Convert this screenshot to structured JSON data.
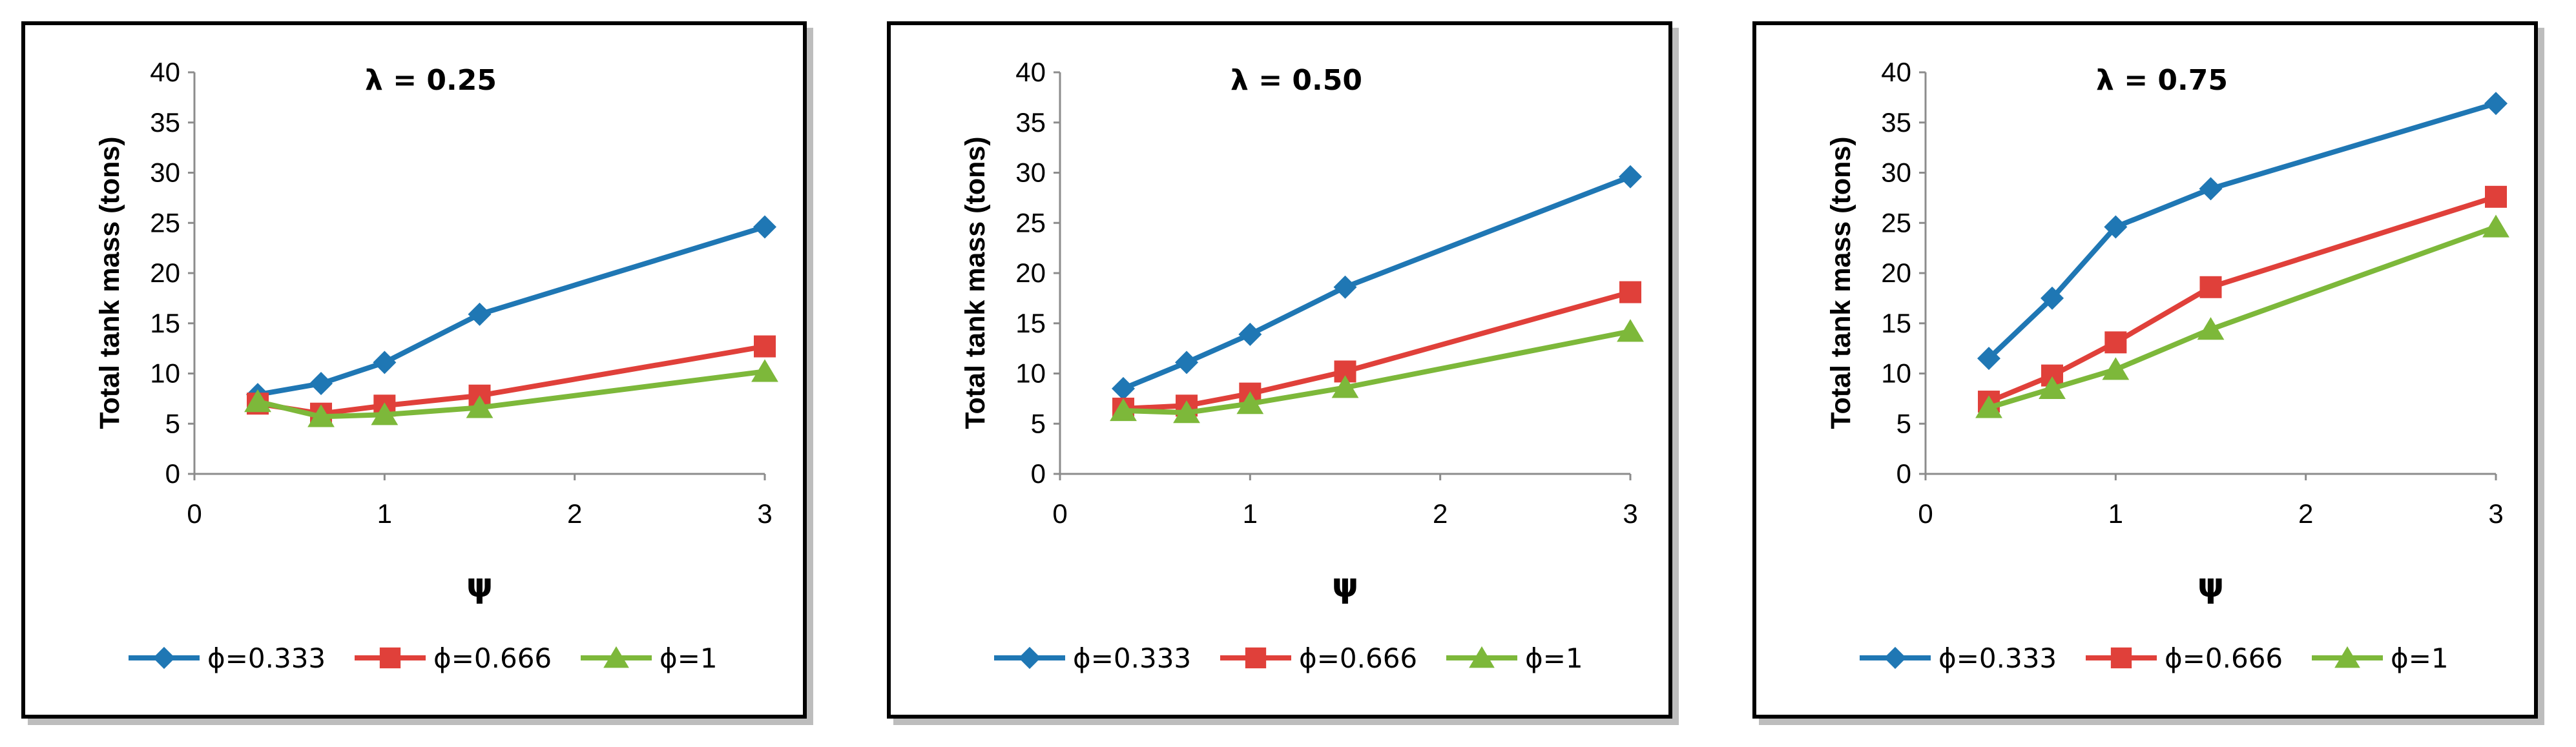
{
  "colors": {
    "phi_0333": "#1f77b4",
    "phi_0666": "#e0403a",
    "phi_1": "#7db83a",
    "axis": "#8c8c8c",
    "panel_border": "#000000"
  },
  "chart_data": [
    {
      "type": "line",
      "title": "λ = 0.25",
      "xlabel": "ψ",
      "ylabel": "Total tank mass (tons)",
      "xlim": [
        0,
        3
      ],
      "ylim": [
        0,
        40
      ],
      "xticks": [
        0,
        1,
        2,
        3
      ],
      "yticks": [
        0,
        5,
        10,
        15,
        20,
        25,
        30,
        35,
        40
      ],
      "x": [
        0.333,
        0.666,
        1,
        1.5,
        3
      ],
      "series": [
        {
          "name": "ϕ=0.333",
          "marker": "diamond",
          "values": [
            7.9,
            9.0,
            11.1,
            15.9,
            24.6
          ]
        },
        {
          "name": "ϕ=0.666",
          "marker": "square",
          "values": [
            7.0,
            6.0,
            6.8,
            7.8,
            12.7
          ]
        },
        {
          "name": "ϕ=1",
          "marker": "triangle",
          "values": [
            7.2,
            5.7,
            5.9,
            6.6,
            10.2
          ]
        }
      ],
      "legend": "bottom"
    },
    {
      "type": "line",
      "title": "λ = 0.50",
      "xlabel": "ψ",
      "ylabel": "Total tank mass (tons)",
      "xlim": [
        0,
        3
      ],
      "ylim": [
        0,
        40
      ],
      "xticks": [
        0,
        1,
        2,
        3
      ],
      "yticks": [
        0,
        5,
        10,
        15,
        20,
        25,
        30,
        35,
        40
      ],
      "x": [
        0.333,
        0.666,
        1,
        1.5,
        3
      ],
      "series": [
        {
          "name": "ϕ=0.333",
          "marker": "diamond",
          "values": [
            8.5,
            11.1,
            13.9,
            18.6,
            29.6
          ]
        },
        {
          "name": "ϕ=0.666",
          "marker": "square",
          "values": [
            6.5,
            6.8,
            8.0,
            10.2,
            18.1
          ]
        },
        {
          "name": "ϕ=1",
          "marker": "triangle",
          "values": [
            6.3,
            6.1,
            7.0,
            8.6,
            14.2
          ]
        }
      ],
      "legend": "bottom"
    },
    {
      "type": "line",
      "title": "λ = 0.75",
      "xlabel": "ψ",
      "ylabel": "Total tank mass (tons)",
      "xlim": [
        0,
        3
      ],
      "ylim": [
        0,
        40
      ],
      "xticks": [
        0,
        1,
        2,
        3
      ],
      "yticks": [
        0,
        5,
        10,
        15,
        20,
        25,
        30,
        35,
        40
      ],
      "x": [
        0.333,
        0.666,
        1,
        1.5,
        3
      ],
      "series": [
        {
          "name": "ϕ=0.333",
          "marker": "diamond",
          "values": [
            11.5,
            17.5,
            24.6,
            28.4,
            36.9
          ]
        },
        {
          "name": "ϕ=0.666",
          "marker": "square",
          "values": [
            7.2,
            9.8,
            13.1,
            18.6,
            27.6
          ]
        },
        {
          "name": "ϕ=1",
          "marker": "triangle",
          "values": [
            6.6,
            8.5,
            10.4,
            14.4,
            24.6
          ]
        }
      ],
      "legend": "bottom"
    }
  ]
}
